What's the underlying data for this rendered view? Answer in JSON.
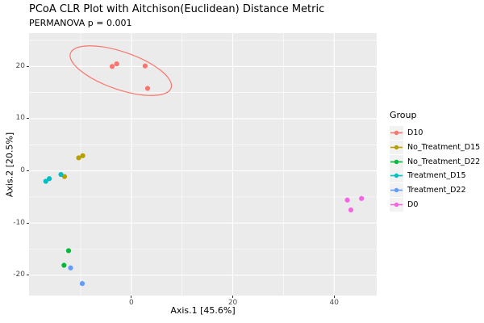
{
  "title": "PCoA CLR Plot with Aitchison(Euclidean) Distance Metric",
  "subtitle": "PERMANOVA p = 0.001",
  "legend": {
    "title": "Group",
    "items": [
      {
        "label": "D10",
        "color": "#F8766D"
      },
      {
        "label": "No_Treatment_D15",
        "color": "#B79F00"
      },
      {
        "label": "No_Treatment_D22",
        "color": "#00BA38"
      },
      {
        "label": "Treatment_D15",
        "color": "#00BFC4"
      },
      {
        "label": "Treatment_D22",
        "color": "#619CFF"
      },
      {
        "label": "D0",
        "color": "#F564E3"
      }
    ]
  },
  "colors": {
    "panel_bg": "#EBEBEB",
    "grid": "#FFFFFF",
    "tick": "#333333",
    "axis_text": "#4D4D4D",
    "text": "#000000",
    "legend_key_bg": "#F2F2F2"
  },
  "chart_data": {
    "type": "scatter",
    "title": "PCoA CLR Plot with Aitchison(Euclidean) Distance Metric",
    "subtitle": "PERMANOVA p = 0.001",
    "xlabel": "Axis.1  [45.6%]",
    "ylabel": "Axis.2  [20.5%]",
    "xlim": [
      -20.2,
      48.4
    ],
    "ylim": [
      -23.9,
      26.4
    ],
    "x_major_ticks": [
      0,
      20,
      40
    ],
    "x_minor_ticks": [
      -10,
      10,
      30
    ],
    "y_major_ticks": [
      -20,
      -10,
      0,
      10,
      20
    ],
    "y_minor_ticks": [
      -15,
      -5,
      5,
      15,
      25
    ],
    "grid": true,
    "legend_position": "right",
    "legend_title": "Group",
    "point_radius": 3.1,
    "series": [
      {
        "name": "D10",
        "color": "#F8766D",
        "points": [
          [
            -3.8,
            20.0
          ],
          [
            -2.9,
            20.5
          ],
          [
            2.7,
            20.1
          ],
          [
            3.2,
            15.8
          ]
        ]
      },
      {
        "name": "No_Treatment_D15",
        "color": "#B79F00",
        "points": [
          [
            -10.4,
            2.5
          ],
          [
            -9.6,
            2.9
          ],
          [
            -13.2,
            -1.1
          ]
        ]
      },
      {
        "name": "No_Treatment_D22",
        "color": "#00BA38",
        "points": [
          [
            -12.4,
            -15.3
          ],
          [
            -13.3,
            -18.1
          ]
        ]
      },
      {
        "name": "Treatment_D15",
        "color": "#00BFC4",
        "points": [
          [
            -16.9,
            -2.0
          ],
          [
            -16.2,
            -1.5
          ],
          [
            -13.9,
            -0.7
          ]
        ]
      },
      {
        "name": "Treatment_D22",
        "color": "#619CFF",
        "points": [
          [
            -12.0,
            -18.6
          ],
          [
            -9.7,
            -21.6
          ]
        ]
      },
      {
        "name": "D0",
        "color": "#F564E3",
        "points": [
          [
            42.6,
            -5.6
          ],
          [
            45.4,
            -5.3
          ],
          [
            43.3,
            -7.5
          ]
        ]
      }
    ],
    "annotations": {
      "ellipse": {
        "series": "D10",
        "cx": -2.1,
        "cy": 19.2,
        "rx": 10.5,
        "ry": 3.6,
        "rotation_deg": 19,
        "color": "#F8766D"
      }
    }
  }
}
